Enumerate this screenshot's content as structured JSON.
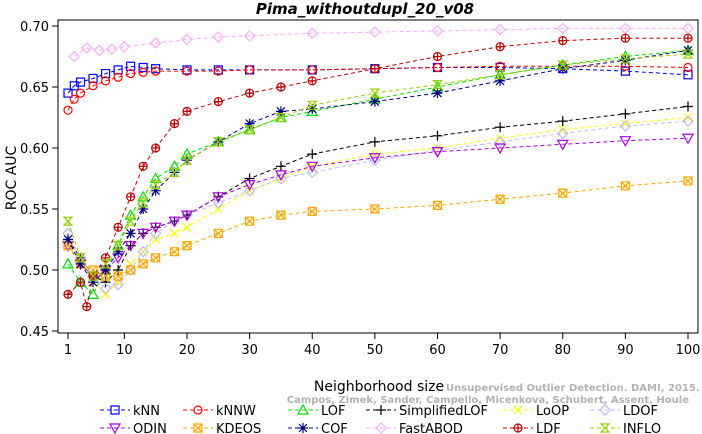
{
  "chart_data": {
    "type": "line",
    "title": "Pima_withoutdupl_20_v08",
    "xlabel": "Neighborhood size",
    "ylabel": "ROC AUC",
    "xlim": [
      1,
      100
    ],
    "ylim": [
      0.45,
      0.7
    ],
    "xticks": [
      1,
      10,
      20,
      30,
      40,
      50,
      60,
      70,
      80,
      90,
      100
    ],
    "yticks": [
      0.45,
      0.5,
      0.55,
      0.6,
      0.65,
      0.7
    ],
    "xtick_labels": [
      "1",
      "10",
      "20",
      "30",
      "40",
      "50",
      "60",
      "70",
      "80",
      "90",
      "100"
    ],
    "ytick_labels": [
      "0.45",
      "0.50",
      "0.55",
      "0.60",
      "0.65",
      "0.70"
    ],
    "grid": false,
    "legend_position": "bottom",
    "watermark": {
      "line1": "Unsupervised Outlier Detection. DAMI, 2015.",
      "line2": "Campos, Zimek, Sander, Campello, Micenkova, Schubert, Assent, Houle"
    },
    "series": [
      {
        "name": "kNN",
        "color": "#0000ff",
        "marker": "square",
        "x": [
          1,
          2,
          3,
          5,
          7,
          9,
          11,
          13,
          15,
          20,
          25,
          30,
          40,
          50,
          60,
          70,
          80,
          90,
          100
        ],
        "y": [
          0.645,
          0.651,
          0.654,
          0.657,
          0.661,
          0.664,
          0.667,
          0.666,
          0.665,
          0.664,
          0.664,
          0.664,
          0.664,
          0.665,
          0.666,
          0.666,
          0.665,
          0.663,
          0.66
        ]
      },
      {
        "name": "kNNW",
        "color": "#ff0000",
        "marker": "circle",
        "x": [
          1,
          2,
          3,
          5,
          7,
          9,
          11,
          13,
          15,
          20,
          25,
          30,
          40,
          50,
          60,
          70,
          80,
          90,
          100
        ],
        "y": [
          0.631,
          0.64,
          0.645,
          0.651,
          0.655,
          0.658,
          0.661,
          0.662,
          0.663,
          0.663,
          0.663,
          0.664,
          0.664,
          0.665,
          0.666,
          0.667,
          0.667,
          0.667,
          0.666
        ]
      },
      {
        "name": "LOF",
        "color": "#00dd00",
        "marker": "triangle-up",
        "x": [
          1,
          3,
          5,
          7,
          9,
          11,
          13,
          15,
          18,
          20,
          25,
          30,
          35,
          40,
          50,
          60,
          70,
          80,
          90,
          100
        ],
        "y": [
          0.505,
          0.49,
          0.48,
          0.5,
          0.52,
          0.545,
          0.56,
          0.575,
          0.585,
          0.595,
          0.605,
          0.615,
          0.625,
          0.63,
          0.64,
          0.65,
          0.66,
          0.668,
          0.675,
          0.68
        ]
      },
      {
        "name": "SimplifiedLOF",
        "color": "#000000",
        "marker": "plus",
        "x": [
          1,
          3,
          5,
          7,
          9,
          11,
          13,
          15,
          18,
          20,
          25,
          30,
          35,
          40,
          50,
          60,
          70,
          80,
          90,
          100
        ],
        "y": [
          0.525,
          0.51,
          0.495,
          0.49,
          0.5,
          0.52,
          0.53,
          0.535,
          0.54,
          0.545,
          0.56,
          0.575,
          0.585,
          0.595,
          0.605,
          0.61,
          0.617,
          0.622,
          0.628,
          0.634
        ]
      },
      {
        "name": "LoOP",
        "color": "#ffff00",
        "marker": "x",
        "x": [
          1,
          3,
          5,
          7,
          9,
          11,
          13,
          15,
          18,
          20,
          25,
          30,
          35,
          40,
          50,
          60,
          70,
          80,
          90,
          100
        ],
        "y": [
          0.52,
          0.505,
          0.49,
          0.48,
          0.49,
          0.505,
          0.515,
          0.525,
          0.53,
          0.535,
          0.55,
          0.565,
          0.575,
          0.585,
          0.595,
          0.6,
          0.608,
          0.615,
          0.62,
          0.625
        ]
      },
      {
        "name": "LDOF",
        "color": "#bbbbff",
        "marker": "diamond",
        "x": [
          1,
          3,
          5,
          7,
          9,
          11,
          13,
          15,
          18,
          20,
          25,
          30,
          35,
          40,
          50,
          60,
          70,
          80,
          90,
          100
        ],
        "y": [
          0.53,
          0.51,
          0.495,
          0.485,
          0.488,
          0.5,
          0.515,
          0.53,
          0.54,
          0.545,
          0.555,
          0.565,
          0.575,
          0.58,
          0.59,
          0.598,
          0.605,
          0.612,
          0.618,
          0.622
        ]
      },
      {
        "name": "ODIN",
        "color": "#aa00dd",
        "marker": "triangle-down",
        "x": [
          1,
          3,
          5,
          7,
          9,
          11,
          13,
          15,
          18,
          20,
          25,
          30,
          35,
          40,
          50,
          60,
          70,
          80,
          90,
          100
        ],
        "y": [
          0.52,
          0.505,
          0.495,
          0.5,
          0.51,
          0.52,
          0.53,
          0.535,
          0.54,
          0.545,
          0.56,
          0.57,
          0.578,
          0.585,
          0.592,
          0.597,
          0.6,
          0.603,
          0.606,
          0.608
        ]
      },
      {
        "name": "KDEOS",
        "color": "#ffa500",
        "marker": "square-x",
        "x": [
          1,
          3,
          5,
          7,
          9,
          11,
          13,
          15,
          18,
          20,
          25,
          30,
          35,
          40,
          50,
          60,
          70,
          80,
          90,
          100
        ],
        "y": [
          0.52,
          0.505,
          0.5,
          0.495,
          0.495,
          0.5,
          0.505,
          0.51,
          0.515,
          0.52,
          0.53,
          0.54,
          0.545,
          0.548,
          0.55,
          0.553,
          0.558,
          0.563,
          0.569,
          0.573
        ]
      },
      {
        "name": "COF",
        "color": "#000080",
        "marker": "star",
        "x": [
          1,
          3,
          5,
          7,
          9,
          11,
          13,
          15,
          18,
          20,
          25,
          30,
          35,
          40,
          50,
          60,
          70,
          80,
          90,
          100
        ],
        "y": [
          0.525,
          0.505,
          0.49,
          0.5,
          0.515,
          0.53,
          0.55,
          0.565,
          0.58,
          0.59,
          0.605,
          0.62,
          0.63,
          0.632,
          0.638,
          0.645,
          0.655,
          0.665,
          0.672,
          0.68
        ]
      },
      {
        "name": "FastABOD",
        "color": "#ffaaff",
        "marker": "diamond",
        "x": [
          2,
          4,
          6,
          8,
          10,
          15,
          20,
          25,
          30,
          40,
          50,
          60,
          70,
          80,
          90,
          100
        ],
        "y": [
          0.675,
          0.682,
          0.68,
          0.681,
          0.683,
          0.686,
          0.689,
          0.691,
          0.692,
          0.694,
          0.695,
          0.696,
          0.697,
          0.698,
          0.698,
          0.698
        ]
      },
      {
        "name": "LDF",
        "color": "#bb0000",
        "marker": "circle-plus",
        "x": [
          1,
          3,
          4,
          5,
          7,
          9,
          11,
          13,
          15,
          18,
          20,
          25,
          30,
          35,
          40,
          50,
          60,
          70,
          80,
          90,
          100
        ],
        "y": [
          0.48,
          0.49,
          0.47,
          0.495,
          0.51,
          0.535,
          0.56,
          0.585,
          0.6,
          0.62,
          0.63,
          0.638,
          0.645,
          0.65,
          0.655,
          0.665,
          0.675,
          0.683,
          0.688,
          0.69,
          0.69
        ]
      },
      {
        "name": "INFLO",
        "color": "#99cc00",
        "marker": "hourglass",
        "x": [
          1,
          3,
          5,
          7,
          9,
          11,
          13,
          15,
          18,
          20,
          25,
          30,
          35,
          40,
          50,
          60,
          70,
          80,
          90,
          100
        ],
        "y": [
          0.54,
          0.51,
          0.495,
          0.505,
          0.52,
          0.54,
          0.555,
          0.57,
          0.58,
          0.59,
          0.605,
          0.615,
          0.625,
          0.635,
          0.645,
          0.652,
          0.66,
          0.668,
          0.673,
          0.677
        ]
      }
    ],
    "legend_order": [
      "kNN",
      "kNNW",
      "LOF",
      "SimplifiedLOF",
      "LoOP",
      "LDOF",
      "ODIN",
      "KDEOS",
      "COF",
      "FastABOD",
      "LDF",
      "INFLO"
    ]
  }
}
